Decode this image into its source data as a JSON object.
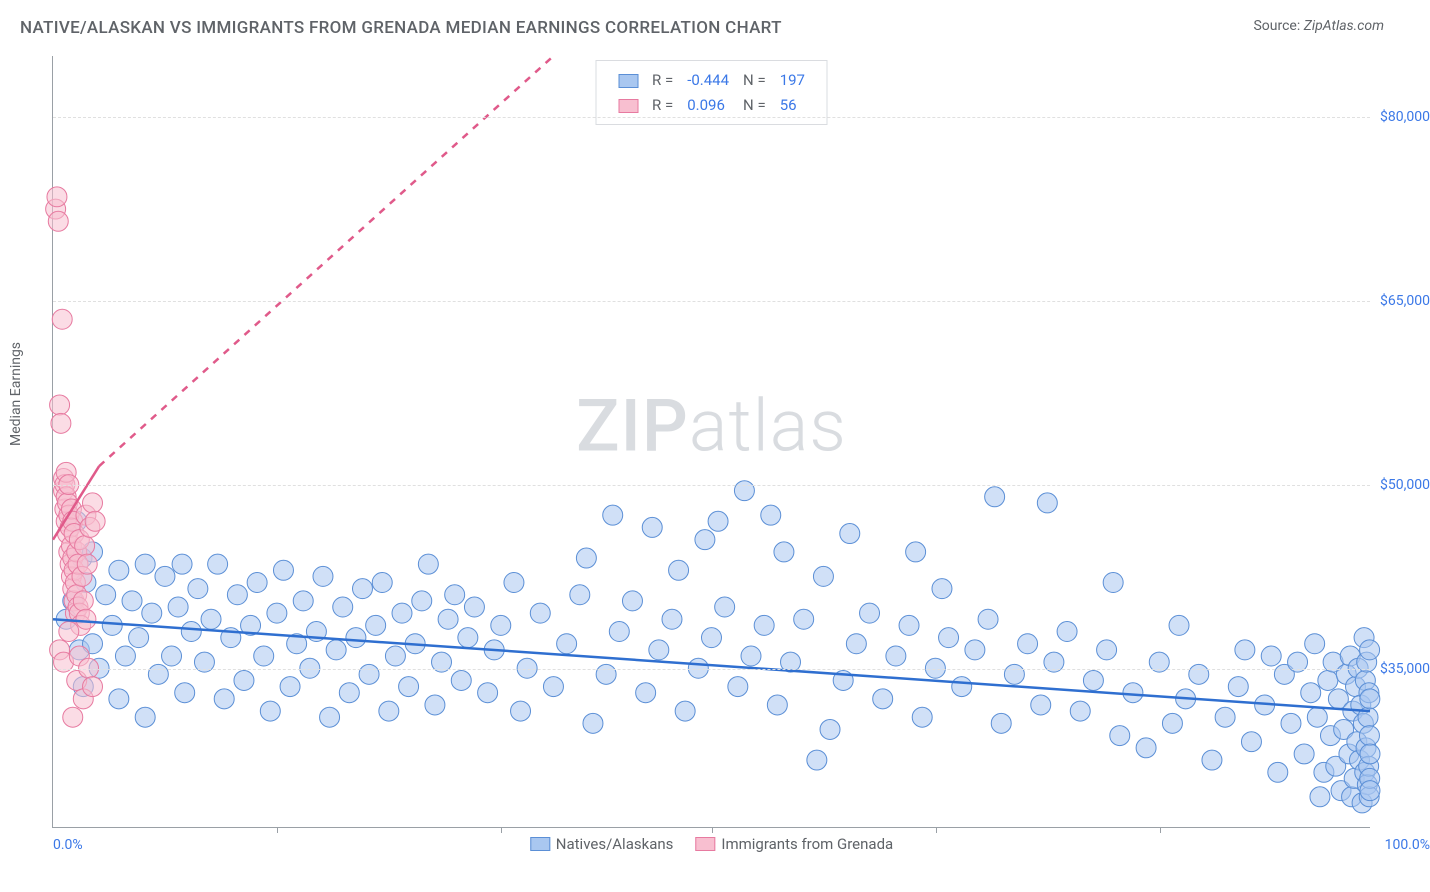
{
  "title": "NATIVE/ALASKAN VS IMMIGRANTS FROM GRENADA MEDIAN EARNINGS CORRELATION CHART",
  "source_prefix": "Source: ",
  "source_name": "ZipAtlas.com",
  "watermark": {
    "zip": "ZIP",
    "atlas": "atlas"
  },
  "y_axis": {
    "title": "Median Earnings",
    "ticks": [
      {
        "value": 35000,
        "label": "$35,000"
      },
      {
        "value": 50000,
        "label": "$50,000"
      },
      {
        "value": 65000,
        "label": "$65,000"
      },
      {
        "value": 80000,
        "label": "$80,000"
      }
    ],
    "min": 22000,
    "max": 85000
  },
  "x_axis": {
    "min": 0,
    "max": 100,
    "label_left": "0.0%",
    "label_right": "100.0%",
    "tick_positions": [
      17,
      34,
      50,
      67,
      84
    ]
  },
  "series": {
    "blue": {
      "label": "Natives/Alaskans",
      "fill": "#a9c7f0",
      "stroke": "#5b8fd6",
      "fill_opacity": 0.55,
      "marker_radius": 10,
      "R": "-0.444",
      "N": "197",
      "trend": {
        "x1": 0,
        "y1": 39000,
        "x2": 100,
        "y2": 31500,
        "dashed_extension": false
      }
    },
    "pink": {
      "label": "Immigrants from Grenada",
      "fill": "#f8bfd0",
      "stroke": "#e77aa0",
      "fill_opacity": 0.55,
      "marker_radius": 10,
      "R": "0.096",
      "N": "56",
      "trend": {
        "x1": 0,
        "y1": 45500,
        "x2": 3.5,
        "y2": 51500,
        "dashed_extension": true,
        "dash_x2": 38,
        "dash_y2": 85000
      }
    }
  },
  "stats_box_labels": {
    "R": "R =",
    "N": "N ="
  },
  "colors": {
    "blue_swatch_fill": "#a9c7f0",
    "blue_swatch_border": "#5b8fd6",
    "pink_swatch_fill": "#f8bfd0",
    "pink_swatch_border": "#e77aa0",
    "value_text": "#3b78e7",
    "trend_blue": "#2f6fd0",
    "trend_pink": "#e05a8a"
  },
  "data_blue": [
    [
      1,
      39000
    ],
    [
      1.5,
      40500
    ],
    [
      1.8,
      47000
    ],
    [
      2,
      36500
    ],
    [
      2.2,
      44000
    ],
    [
      2.3,
      33500
    ],
    [
      2.5,
      42000
    ],
    [
      3,
      37000
    ],
    [
      3,
      44500
    ],
    [
      3.5,
      35000
    ],
    [
      4,
      41000
    ],
    [
      4.5,
      38500
    ],
    [
      5,
      43000
    ],
    [
      5,
      32500
    ],
    [
      5.5,
      36000
    ],
    [
      6,
      40500
    ],
    [
      6.5,
      37500
    ],
    [
      7,
      43500
    ],
    [
      7,
      31000
    ],
    [
      7.5,
      39500
    ],
    [
      8,
      34500
    ],
    [
      8.5,
      42500
    ],
    [
      9,
      36000
    ],
    [
      9.5,
      40000
    ],
    [
      9.8,
      43500
    ],
    [
      10,
      33000
    ],
    [
      10.5,
      38000
    ],
    [
      11,
      41500
    ],
    [
      11.5,
      35500
    ],
    [
      12,
      39000
    ],
    [
      12.5,
      43500
    ],
    [
      13,
      32500
    ],
    [
      13.5,
      37500
    ],
    [
      14,
      41000
    ],
    [
      14.5,
      34000
    ],
    [
      15,
      38500
    ],
    [
      15.5,
      42000
    ],
    [
      16,
      36000
    ],
    [
      16.5,
      31500
    ],
    [
      17,
      39500
    ],
    [
      17.5,
      43000
    ],
    [
      18,
      33500
    ],
    [
      18.5,
      37000
    ],
    [
      19,
      40500
    ],
    [
      19.5,
      35000
    ],
    [
      20,
      38000
    ],
    [
      20.5,
      42500
    ],
    [
      21,
      31000
    ],
    [
      21.5,
      36500
    ],
    [
      22,
      40000
    ],
    [
      22.5,
      33000
    ],
    [
      23,
      37500
    ],
    [
      23.5,
      41500
    ],
    [
      24,
      34500
    ],
    [
      24.5,
      38500
    ],
    [
      25,
      42000
    ],
    [
      25.5,
      31500
    ],
    [
      26,
      36000
    ],
    [
      26.5,
      39500
    ],
    [
      27,
      33500
    ],
    [
      27.5,
      37000
    ],
    [
      28,
      40500
    ],
    [
      28.5,
      43500
    ],
    [
      29,
      32000
    ],
    [
      29.5,
      35500
    ],
    [
      30,
      39000
    ],
    [
      30.5,
      41000
    ],
    [
      31,
      34000
    ],
    [
      31.5,
      37500
    ],
    [
      32,
      40000
    ],
    [
      33,
      33000
    ],
    [
      33.5,
      36500
    ],
    [
      34,
      38500
    ],
    [
      35,
      42000
    ],
    [
      35.5,
      31500
    ],
    [
      36,
      35000
    ],
    [
      37,
      39500
    ],
    [
      38,
      33500
    ],
    [
      39,
      37000
    ],
    [
      40,
      41000
    ],
    [
      40.5,
      44000
    ],
    [
      41,
      30500
    ],
    [
      42,
      34500
    ],
    [
      42.5,
      47500
    ],
    [
      43,
      38000
    ],
    [
      44,
      40500
    ],
    [
      45,
      33000
    ],
    [
      45.5,
      46500
    ],
    [
      46,
      36500
    ],
    [
      47,
      39000
    ],
    [
      47.5,
      43000
    ],
    [
      48,
      31500
    ],
    [
      49,
      35000
    ],
    [
      49.5,
      45500
    ],
    [
      50,
      37500
    ],
    [
      50.5,
      47000
    ],
    [
      51,
      40000
    ],
    [
      52,
      33500
    ],
    [
      52.5,
      49500
    ],
    [
      53,
      36000
    ],
    [
      54,
      38500
    ],
    [
      54.5,
      47500
    ],
    [
      55,
      32000
    ],
    [
      55.5,
      44500
    ],
    [
      56,
      35500
    ],
    [
      57,
      39000
    ],
    [
      58,
      27500
    ],
    [
      58.5,
      42500
    ],
    [
      59,
      30000
    ],
    [
      60,
      34000
    ],
    [
      60.5,
      46000
    ],
    [
      61,
      37000
    ],
    [
      62,
      39500
    ],
    [
      63,
      32500
    ],
    [
      64,
      36000
    ],
    [
      65,
      38500
    ],
    [
      65.5,
      44500
    ],
    [
      66,
      31000
    ],
    [
      67,
      35000
    ],
    [
      67.5,
      41500
    ],
    [
      68,
      37500
    ],
    [
      69,
      33500
    ],
    [
      70,
      36500
    ],
    [
      71,
      39000
    ],
    [
      71.5,
      49000
    ],
    [
      72,
      30500
    ],
    [
      73,
      34500
    ],
    [
      74,
      37000
    ],
    [
      75,
      32000
    ],
    [
      75.5,
      48500
    ],
    [
      76,
      35500
    ],
    [
      77,
      38000
    ],
    [
      78,
      31500
    ],
    [
      79,
      34000
    ],
    [
      80,
      36500
    ],
    [
      80.5,
      42000
    ],
    [
      81,
      29500
    ],
    [
      82,
      33000
    ],
    [
      83,
      28500
    ],
    [
      84,
      35500
    ],
    [
      85,
      30500
    ],
    [
      85.5,
      38500
    ],
    [
      86,
      32500
    ],
    [
      87,
      34500
    ],
    [
      88,
      27500
    ],
    [
      89,
      31000
    ],
    [
      90,
      33500
    ],
    [
      90.5,
      36500
    ],
    [
      91,
      29000
    ],
    [
      92,
      32000
    ],
    [
      92.5,
      36000
    ],
    [
      93,
      26500
    ],
    [
      93.5,
      34500
    ],
    [
      94,
      30500
    ],
    [
      94.5,
      35500
    ],
    [
      95,
      28000
    ],
    [
      95.5,
      33000
    ],
    [
      95.8,
      37000
    ],
    [
      96,
      31000
    ],
    [
      96.2,
      24500
    ],
    [
      96.5,
      26500
    ],
    [
      96.8,
      34000
    ],
    [
      97,
      29500
    ],
    [
      97.2,
      35500
    ],
    [
      97.4,
      27000
    ],
    [
      97.6,
      32500
    ],
    [
      97.8,
      25000
    ],
    [
      98,
      30000
    ],
    [
      98.2,
      34500
    ],
    [
      98.4,
      28000
    ],
    [
      98.5,
      36000
    ],
    [
      98.6,
      24500
    ],
    [
      98.7,
      31500
    ],
    [
      98.8,
      26000
    ],
    [
      98.9,
      33500
    ],
    [
      99,
      29000
    ],
    [
      99.1,
      35000
    ],
    [
      99.2,
      27500
    ],
    [
      99.3,
      32000
    ],
    [
      99.4,
      24000
    ],
    [
      99.5,
      30500
    ],
    [
      99.55,
      37500
    ],
    [
      99.6,
      26500
    ],
    [
      99.65,
      34000
    ],
    [
      99.7,
      28500
    ],
    [
      99.75,
      35500
    ],
    [
      99.8,
      25500
    ],
    [
      99.85,
      31000
    ],
    [
      99.9,
      27000
    ],
    [
      99.92,
      33000
    ],
    [
      99.94,
      24500
    ],
    [
      99.96,
      29500
    ],
    [
      99.97,
      36500
    ],
    [
      99.98,
      26000
    ],
    [
      99.99,
      32500
    ],
    [
      100,
      25000
    ],
    [
      100,
      28000
    ]
  ],
  "data_pink": [
    [
      0.2,
      72500
    ],
    [
      0.3,
      73500
    ],
    [
      0.4,
      71500
    ],
    [
      0.5,
      56500
    ],
    [
      0.6,
      55000
    ],
    [
      0.7,
      63500
    ],
    [
      0.8,
      49500
    ],
    [
      0.8,
      50500
    ],
    [
      0.9,
      48000
    ],
    [
      0.9,
      50000
    ],
    [
      1.0,
      47000
    ],
    [
      1.0,
      49000
    ],
    [
      1.0,
      51000
    ],
    [
      1.1,
      46000
    ],
    [
      1.1,
      48500
    ],
    [
      1.2,
      44500
    ],
    [
      1.2,
      47500
    ],
    [
      1.2,
      50000
    ],
    [
      1.3,
      43500
    ],
    [
      1.3,
      46500
    ],
    [
      1.4,
      42500
    ],
    [
      1.4,
      45000
    ],
    [
      1.4,
      48000
    ],
    [
      1.5,
      41500
    ],
    [
      1.5,
      44000
    ],
    [
      1.5,
      47000
    ],
    [
      1.6,
      40500
    ],
    [
      1.6,
      43000
    ],
    [
      1.6,
      46000
    ],
    [
      1.7,
      39500
    ],
    [
      1.7,
      42000
    ],
    [
      1.8,
      41000
    ],
    [
      1.8,
      44500
    ],
    [
      1.9,
      40000
    ],
    [
      1.9,
      43500
    ],
    [
      2.0,
      39500
    ],
    [
      2.0,
      45500
    ],
    [
      2.1,
      38500
    ],
    [
      2.2,
      42500
    ],
    [
      2.3,
      40500
    ],
    [
      2.4,
      45000
    ],
    [
      2.5,
      39000
    ],
    [
      2.5,
      47500
    ],
    [
      2.6,
      43500
    ],
    [
      2.8,
      46500
    ],
    [
      3.0,
      48500
    ],
    [
      3.2,
      47000
    ],
    [
      0.5,
      36500
    ],
    [
      0.8,
      35500
    ],
    [
      1.2,
      38000
    ],
    [
      1.5,
      31000
    ],
    [
      1.8,
      34000
    ],
    [
      2.0,
      36000
    ],
    [
      2.3,
      32500
    ],
    [
      2.7,
      35000
    ],
    [
      3.0,
      33500
    ]
  ]
}
